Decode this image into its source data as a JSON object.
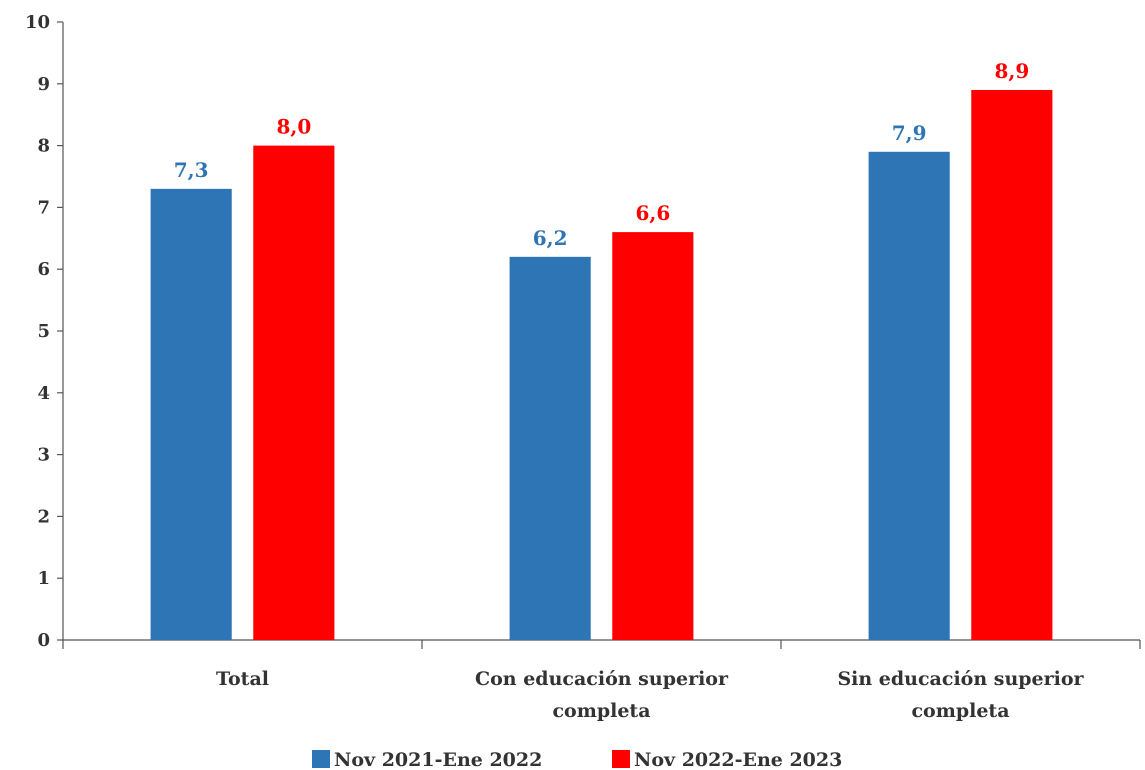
{
  "chart_data": {
    "type": "bar",
    "categories": [
      [
        "Total"
      ],
      [
        "Con educación superior",
        "completa"
      ],
      [
        "Sin educación superior",
        "completa"
      ]
    ],
    "series": [
      {
        "name": "Nov 2021-Ene 2022",
        "values": [
          7.3,
          6.2,
          7.9
        ],
        "labels": [
          "7,3",
          "6,2",
          "7,9"
        ],
        "color": "#2e75b6"
      },
      {
        "name": "Nov 2022-Ene 2023",
        "values": [
          8.0,
          6.6,
          8.9
        ],
        "labels": [
          "8,0",
          "6,6",
          "8,9"
        ],
        "color": "#ff0000"
      }
    ],
    "ylim": [
      0,
      10
    ],
    "yticks": [
      "0",
      "1",
      "2",
      "3",
      "4",
      "5",
      "6",
      "7",
      "8",
      "9",
      "10"
    ],
    "grid": false,
    "legend_position": "bottom"
  }
}
